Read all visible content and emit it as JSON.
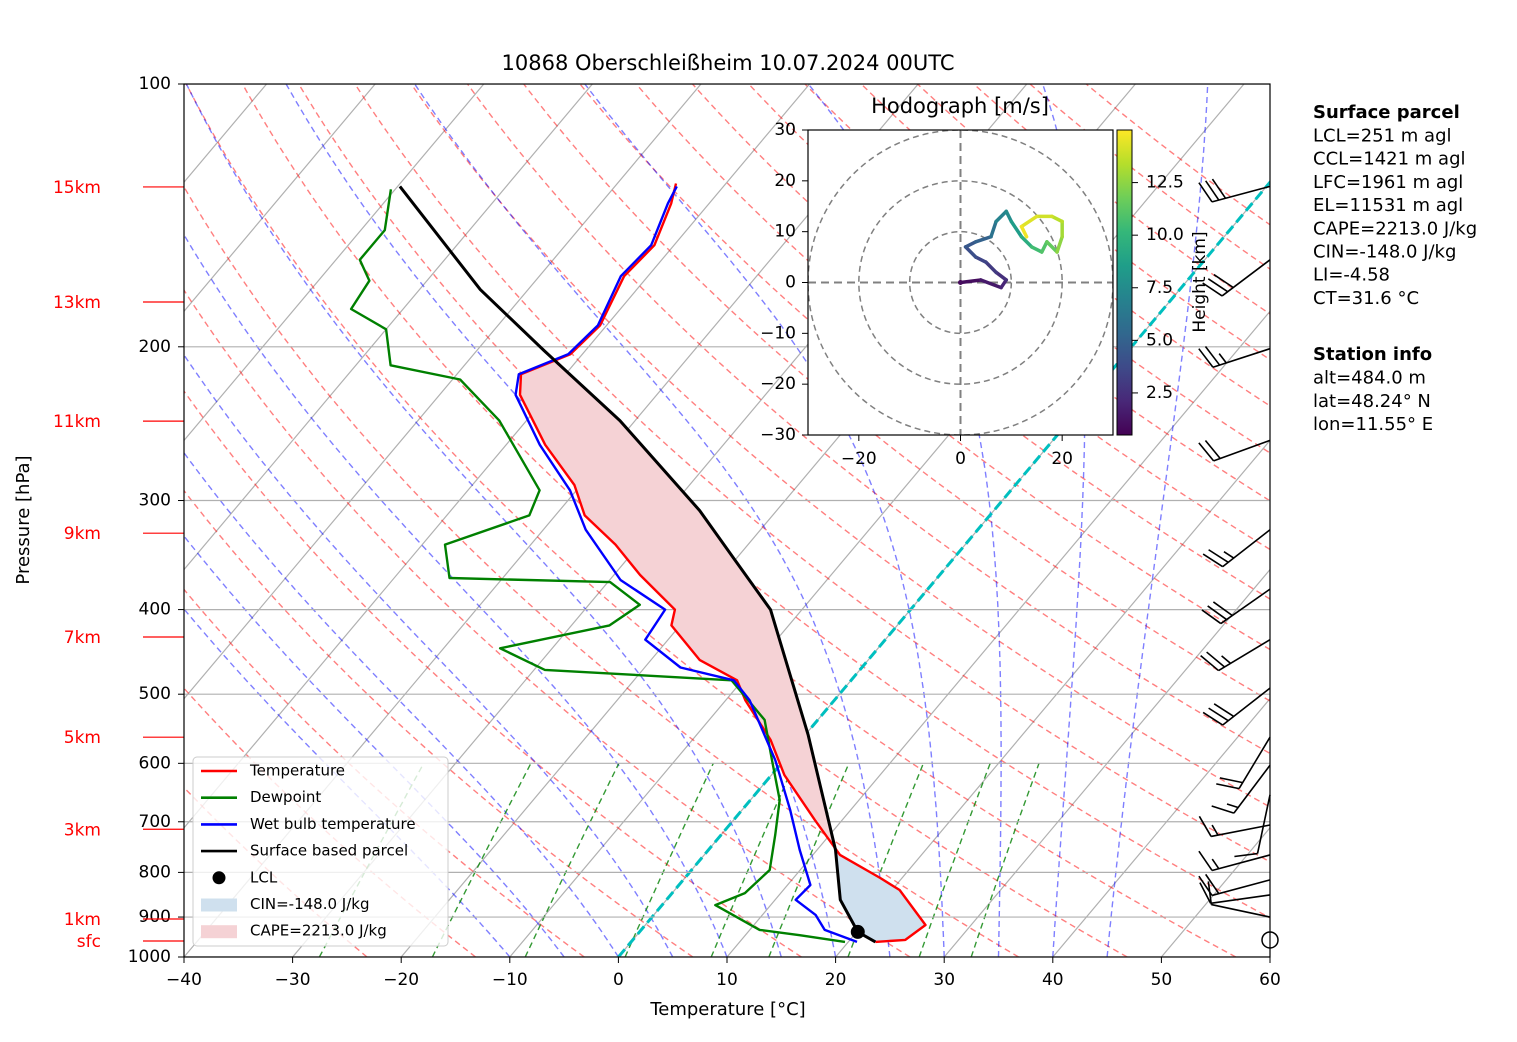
{
  "chart_data": {
    "type": "skewt",
    "title": "10868 Oberschleißheim 10.07.2024 00UTC",
    "xlabel": "Temperature [°C]",
    "ylabel": "Pressure [hPa]",
    "xlim": [
      -40,
      60
    ],
    "ylim": [
      1000,
      100
    ],
    "log_y": true,
    "grid": true,
    "legend": "lower left",
    "xticks": [
      {
        "value": -40,
        "label": "−40"
      },
      {
        "value": -30,
        "label": "−30"
      },
      {
        "value": -20,
        "label": "−20"
      },
      {
        "value": -10,
        "label": "−10"
      },
      0,
      10,
      20,
      30,
      40,
      50,
      60
    ],
    "yticks": [
      100,
      200,
      300,
      400,
      500,
      600,
      700,
      800,
      900,
      1000
    ],
    "series": [
      {
        "name": "Temperature",
        "color": "#ff0000",
        "pressure": [
          961,
          956,
          919,
          838,
          812,
          764,
          697,
          619,
          564,
          508,
          482,
          457,
          417,
          400,
          365,
          337,
          312,
          288,
          259,
          227,
          215,
          204,
          189,
          166,
          153,
          137,
          130
        ],
        "values": [
          22.5,
          25.1,
          25.8,
          20.7,
          18.0,
          12.5,
          7.5,
          1.2,
          -2.8,
          -8.2,
          -10.5,
          -15.5,
          -20.8,
          -21.7,
          -27.6,
          -32.2,
          -37.3,
          -40.6,
          -46.4,
          -52.6,
          -54.1,
          -51.1,
          -50.6,
          -52.2,
          -51.8,
          -53.5,
          -54.6
        ]
      },
      {
        "name": "Dewpoint",
        "color": "#008000",
        "pressure": [
          961,
          944,
          931,
          872,
          845,
          795,
          725,
          661,
          595,
          535,
          482,
          469,
          443,
          417,
          395,
          372,
          368,
          337,
          312,
          292,
          243,
          218,
          210,
          191,
          181,
          168,
          159,
          147,
          132
        ],
        "values": [
          19.7,
          15.0,
          10.9,
          4.9,
          6.7,
          7.2,
          5.0,
          2.7,
          -1.1,
          -4.9,
          -11.0,
          -29.0,
          -34.8,
          -26.5,
          -25.3,
          -29.8,
          -44.9,
          -47.9,
          -42.4,
          -43.4,
          -52.5,
          -59.3,
          -66.8,
          -70.0,
          -74.8,
          -75.3,
          -77.8,
          -77.8,
          -80.4
        ]
      },
      {
        "name": "Wet bulb temperature",
        "color": "#0000ff",
        "pressure": [
          961,
          931,
          895,
          860,
          827,
          754,
          678,
          595,
          508,
          482,
          466,
          433,
          400,
          370,
          324,
          292,
          259,
          227,
          215,
          204,
          189,
          166,
          153,
          137,
          131
        ],
        "values": [
          20.8,
          16.9,
          14.9,
          11.9,
          12.1,
          8.4,
          4.4,
          -0.8,
          -7.8,
          -10.8,
          -16.7,
          -22.1,
          -22.6,
          -29.0,
          -36.1,
          -40.6,
          -46.9,
          -53.0,
          -54.3,
          -51.3,
          -50.8,
          -52.5,
          -52.1,
          -53.8,
          -54.3
        ]
      },
      {
        "name": "Surface based parcel",
        "color": "#000000",
        "pressure": [
          961,
          936,
          860,
          754,
          557,
          400,
          351,
          308,
          243,
          202,
          172,
          131
        ],
        "values": [
          22.5,
          20.1,
          16.0,
          11.7,
          0.3,
          -12.9,
          -20.0,
          -27.1,
          -41.4,
          -53.8,
          -64.4,
          -79.8
        ]
      }
    ],
    "lcl": {
      "name": "LCL",
      "pressure": 936,
      "temperature": 20.1,
      "color": "#000000"
    },
    "shading": [
      {
        "name": "CIN=-148.0 J/kg",
        "color": "#cfe0ee"
      },
      {
        "name": "CAPE=2213.0 J/kg",
        "color": "#f5d2d5"
      }
    ],
    "height_labels": [
      {
        "label": "15km",
        "pressure": 131.2
      },
      {
        "label": "13km",
        "pressure": 177.7
      },
      {
        "label": "11km",
        "pressure": 243.3
      },
      {
        "label": "9km",
        "pressure": 327
      },
      {
        "label": "7km",
        "pressure": 430
      },
      {
        "label": "5km",
        "pressure": 560
      },
      {
        "label": "3km",
        "pressure": 714
      },
      {
        "label": "1km",
        "pressure": 904.7
      },
      {
        "label": "sfc",
        "pressure": 958.7
      }
    ],
    "wind": [
      {
        "pressure": 131,
        "speed": 30,
        "direction": 255
      },
      {
        "pressure": 159,
        "speed": 30,
        "direction": 233
      },
      {
        "pressure": 201,
        "speed": 25,
        "direction": 252
      },
      {
        "pressure": 256,
        "speed": 20,
        "direction": 250
      },
      {
        "pressure": 324,
        "speed": 25,
        "direction": 232
      },
      {
        "pressure": 379,
        "speed": 30,
        "direction": 235
      },
      {
        "pressure": 433,
        "speed": 25,
        "direction": 239
      },
      {
        "pressure": 492,
        "speed": 30,
        "direction": 232
      },
      {
        "pressure": 560,
        "speed": 20,
        "direction": 211
      },
      {
        "pressure": 603,
        "speed": 15,
        "direction": 217
      },
      {
        "pressure": 652,
        "speed": 10,
        "direction": 192
      },
      {
        "pressure": 706,
        "speed": 15,
        "direction": 259
      },
      {
        "pressure": 764,
        "speed": 15,
        "direction": 255
      },
      {
        "pressure": 816,
        "speed": 20,
        "direction": 255
      },
      {
        "pressure": 849,
        "speed": 10,
        "direction": 262
      },
      {
        "pressure": 900,
        "speed": 10,
        "direction": 282
      },
      {
        "pressure": 956,
        "speed": 0,
        "direction": 0
      }
    ],
    "hodograph": {
      "title": "Hodograph [m/s]",
      "xlim": [
        -30,
        30
      ],
      "ylim": [
        -30,
        30
      ],
      "xticks": [
        {
          "value": -20,
          "label": "−20"
        },
        0,
        20
      ],
      "yticks": [
        {
          "value": -30,
          "label": "−30"
        },
        {
          "value": -20,
          "label": "−20"
        },
        {
          "value": -10,
          "label": "−10"
        },
        0,
        10,
        20,
        30
      ],
      "u": [
        0,
        4,
        8,
        9,
        7,
        5,
        3,
        1,
        3,
        6,
        7,
        9,
        10,
        12,
        14,
        16,
        17,
        19,
        20,
        20,
        18,
        15,
        12,
        13
      ],
      "v": [
        0,
        0.5,
        -1,
        0.5,
        2,
        4,
        5,
        7,
        8,
        9,
        12,
        14,
        12,
        9,
        7,
        6,
        8,
        6,
        9,
        12,
        13,
        13,
        11,
        9
      ],
      "height": [
        0.5,
        1.0,
        1.5,
        2.0,
        2.5,
        3.0,
        3.5,
        4.0,
        4.5,
        5.0,
        6.0,
        7.0,
        7.5,
        8.5,
        9.5,
        10.5,
        11.0,
        11.5,
        12.5,
        13.0,
        13.5,
        14.0,
        14.3,
        14.7
      ],
      "colorbar": {
        "label": "Height [km]",
        "clim": [
          0.5,
          15.0
        ],
        "colormap": "viridis",
        "ticks": [
          2.5,
          {
            "value": 5,
            "label": "5.0"
          },
          7.5,
          {
            "value": 10,
            "label": "10.0"
          },
          12.5
        ]
      }
    },
    "info": [
      {
        "title": "Surface parcel",
        "lines": [
          "LCL=251 m agl",
          "CCL=1421 m agl",
          "LFC=1961 m agl",
          "EL=11531 m agl",
          "CAPE=2213.0 J/kg",
          "CIN=-148.0 J/kg",
          "LI=-4.58",
          "CT=31.6 °C"
        ]
      },
      {
        "title": "Station info",
        "lines": [
          "alt=484.0 m",
          "lat=48.24° N",
          "lon=11.55° E"
        ]
      }
    ]
  }
}
